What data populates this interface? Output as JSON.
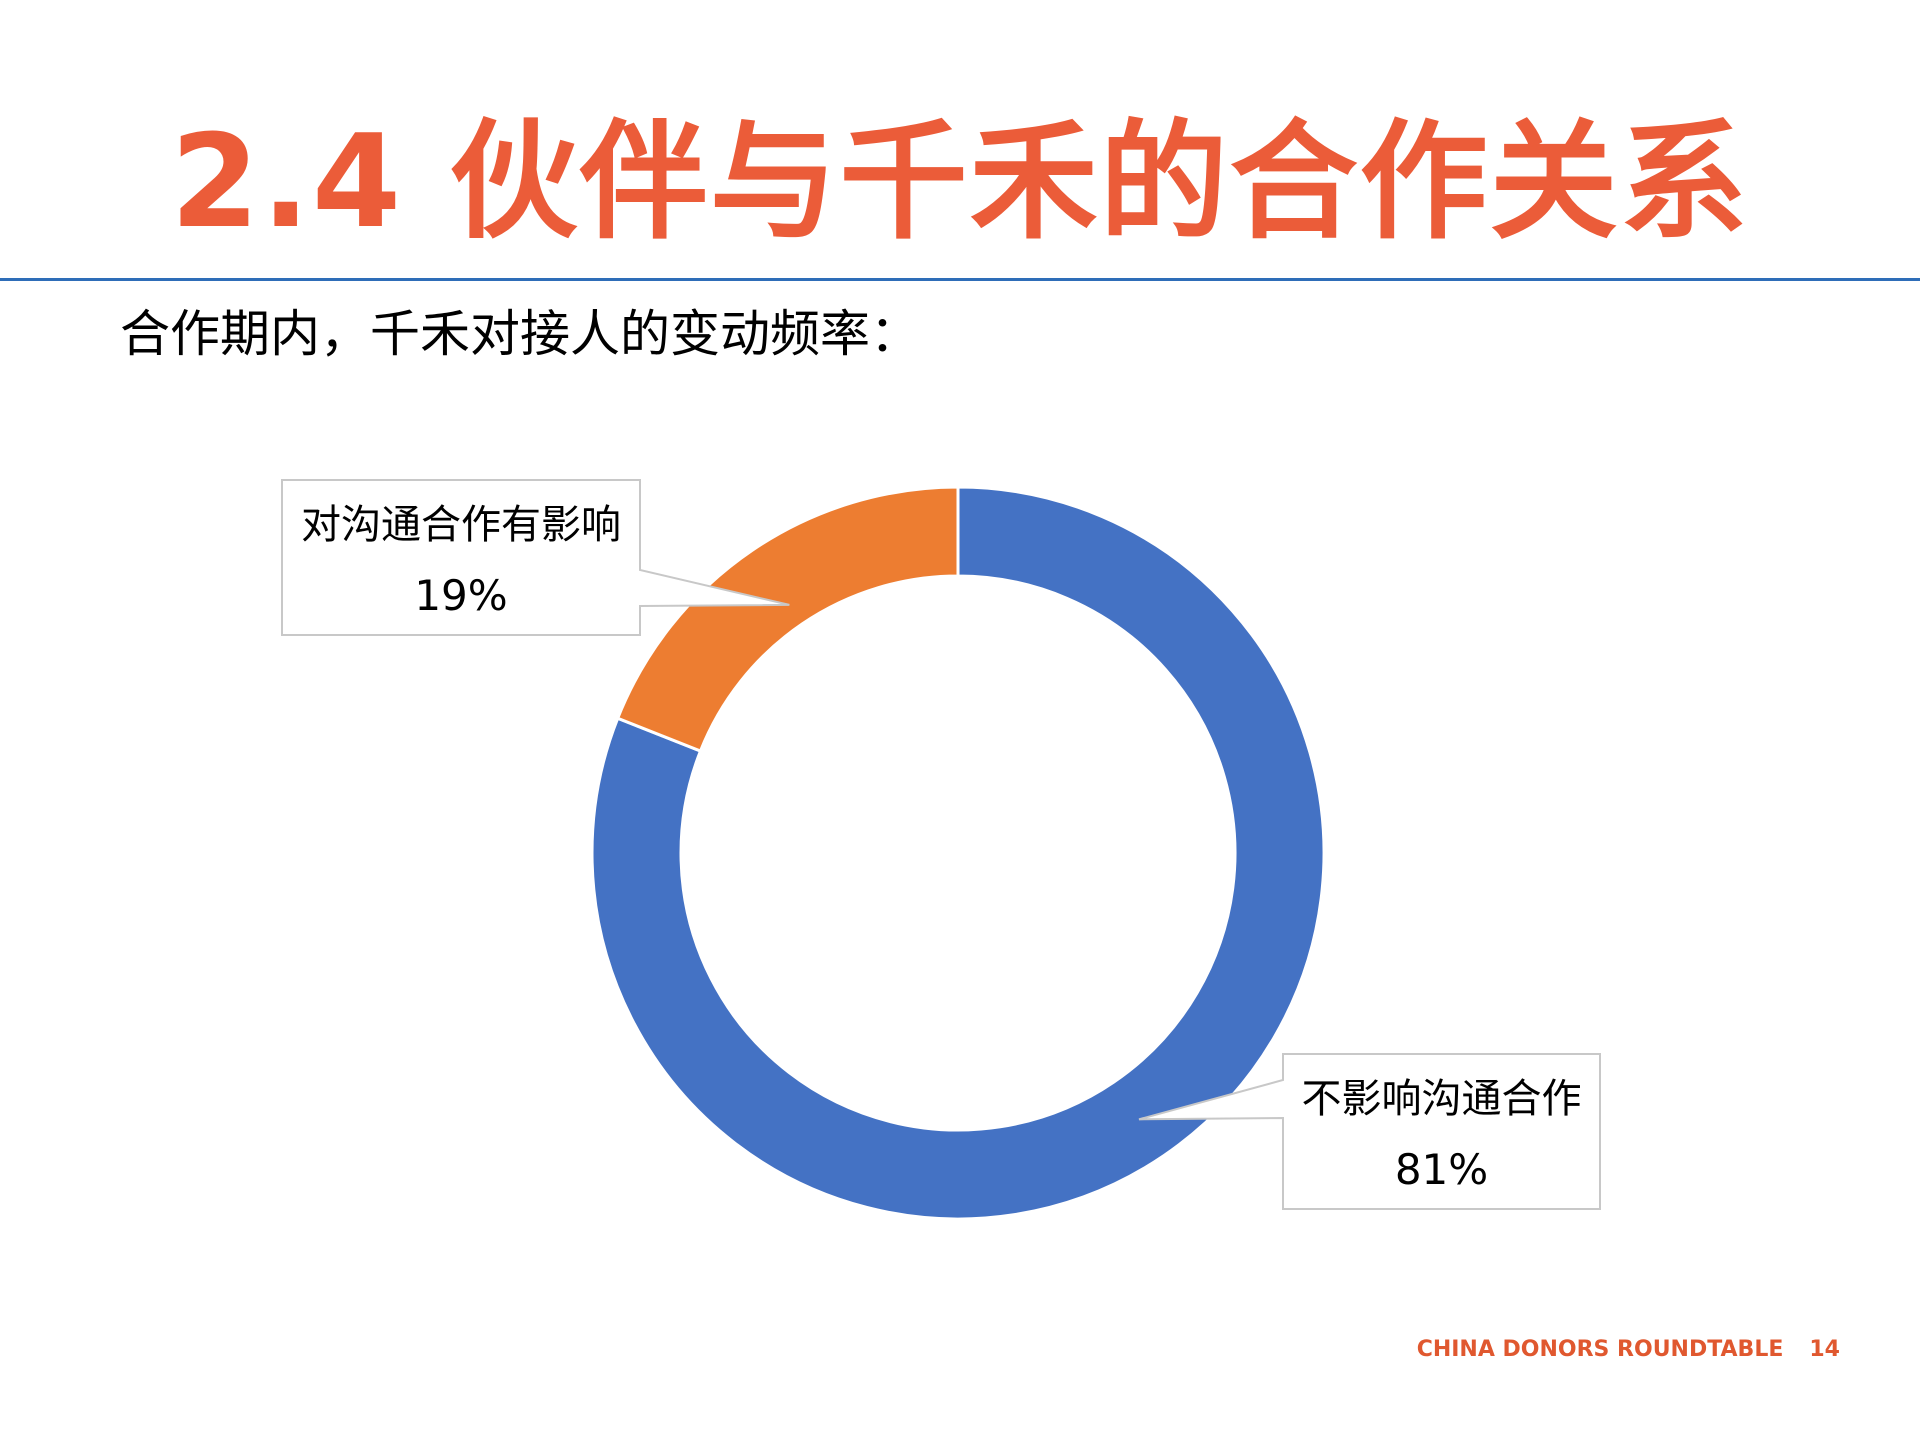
{
  "slide": {
    "title": "2.4 伙伴与千禾的合作关系",
    "subtitle": "合作期内，千禾对接人的变动频率：",
    "footer_org": "CHINA DONORS ROUNDTABLE",
    "page_number": "14"
  },
  "colors": {
    "title": "#eb5c39",
    "rule": "#2e6db8",
    "footer": "#e0582f"
  },
  "chart_data": {
    "type": "pie",
    "variant": "donut",
    "start_angle_deg": 0,
    "direction": "clockwise",
    "slices": [
      {
        "label": "不影响沟通合作",
        "value": 81,
        "percent_label": "81%",
        "color": "#4472c4"
      },
      {
        "label": "对沟通合作有影响",
        "value": 19,
        "percent_label": "19%",
        "color": "#ed7d31"
      }
    ]
  }
}
